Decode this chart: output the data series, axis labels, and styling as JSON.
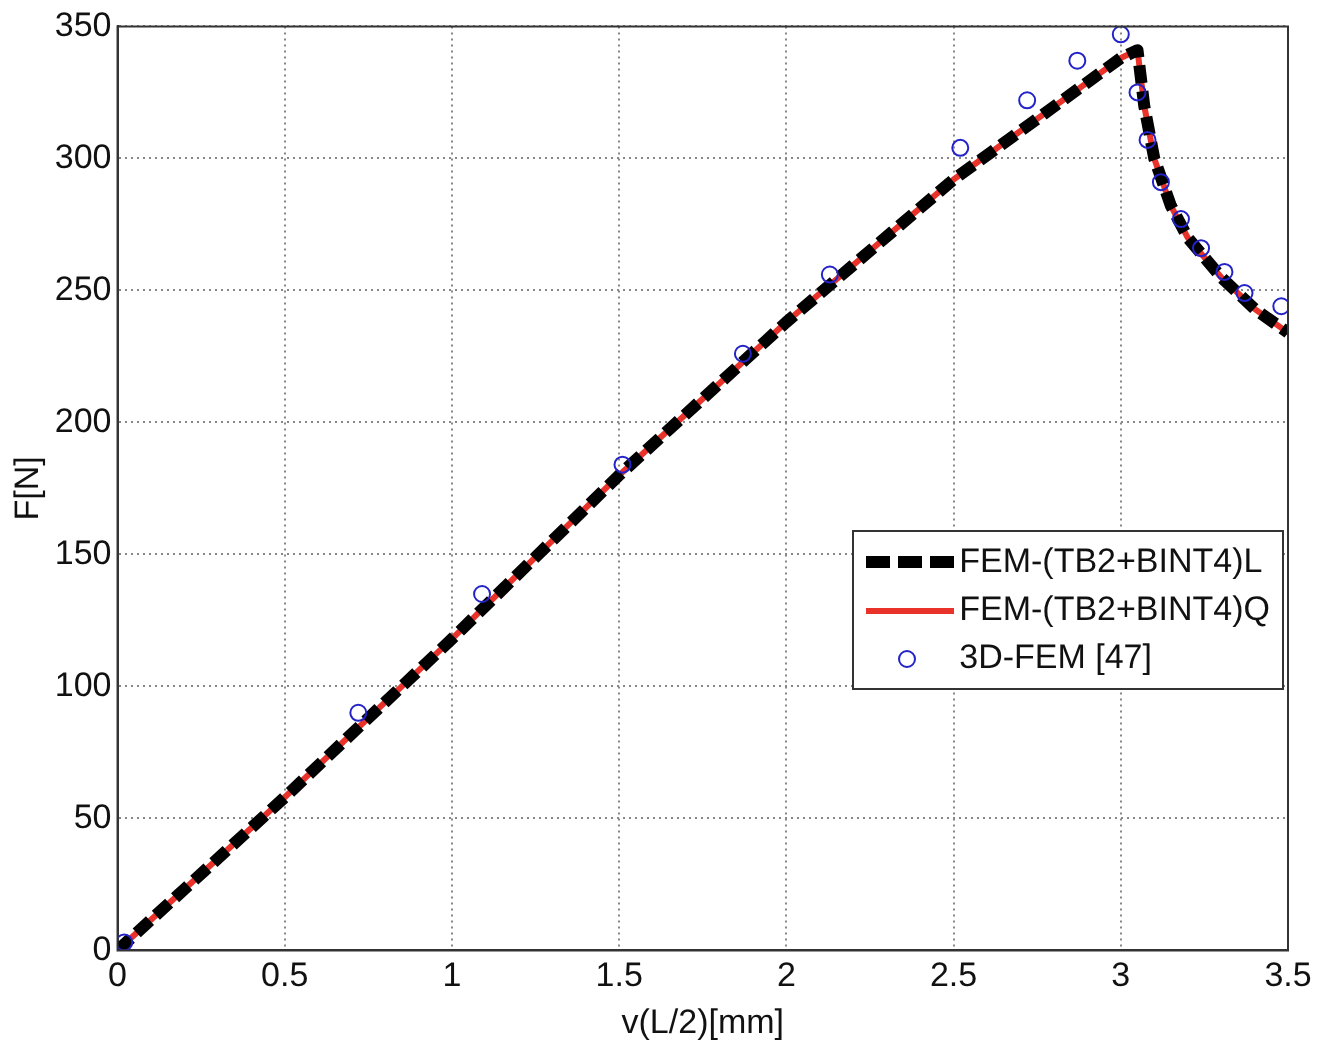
{
  "chart_data": {
    "type": "line",
    "xlabel": "v(L/2)[mm]",
    "ylabel": "F[N]",
    "xlim": [
      0,
      3.5
    ],
    "ylim": [
      0,
      350
    ],
    "xticks": [
      0,
      0.5,
      1,
      1.5,
      2,
      2.5,
      3,
      3.5
    ],
    "yticks": [
      0,
      50,
      100,
      150,
      200,
      250,
      300,
      350
    ],
    "grid": true,
    "legend": "right",
    "series": [
      {
        "name": "FEM-(TB2+BINT4)L",
        "type": "line",
        "color": "#000000",
        "line_style": "dashed",
        "marker": "none",
        "x": [
          0,
          0.5,
          1,
          1.5,
          2,
          2.5,
          3,
          3.05,
          3.07,
          3.1,
          3.15,
          3.2,
          3.3,
          3.4,
          3.5
        ],
        "values": [
          0,
          58,
          118,
          180,
          238,
          292,
          338,
          341,
          320,
          300,
          282,
          270,
          255,
          243,
          234
        ]
      },
      {
        "name": "FEM-(TB2+BINT4)Q",
        "type": "line",
        "color": "#e8322a",
        "line_style": "solid",
        "marker": "none",
        "x": [
          0,
          0.5,
          1,
          1.5,
          2,
          2.5,
          3,
          3.05,
          3.07,
          3.1,
          3.15,
          3.2,
          3.3,
          3.4,
          3.5
        ],
        "values": [
          0,
          58,
          118,
          180,
          238,
          292,
          338,
          341,
          320,
          300,
          282,
          270,
          255,
          243,
          234
        ]
      },
      {
        "name": "3D-FEM [47]",
        "type": "scatter",
        "color": "#2323c8",
        "marker": "circle",
        "x": [
          0.02,
          0.72,
          1.09,
          1.51,
          1.87,
          2.13,
          2.52,
          2.72,
          2.87,
          3.0,
          3.05,
          3.08,
          3.12,
          3.18,
          3.24,
          3.31,
          3.37,
          3.48
        ],
        "values": [
          3,
          90,
          135,
          184,
          226,
          256,
          304,
          322,
          337,
          347,
          325,
          307,
          291,
          277,
          266,
          257,
          249,
          244
        ]
      }
    ]
  }
}
